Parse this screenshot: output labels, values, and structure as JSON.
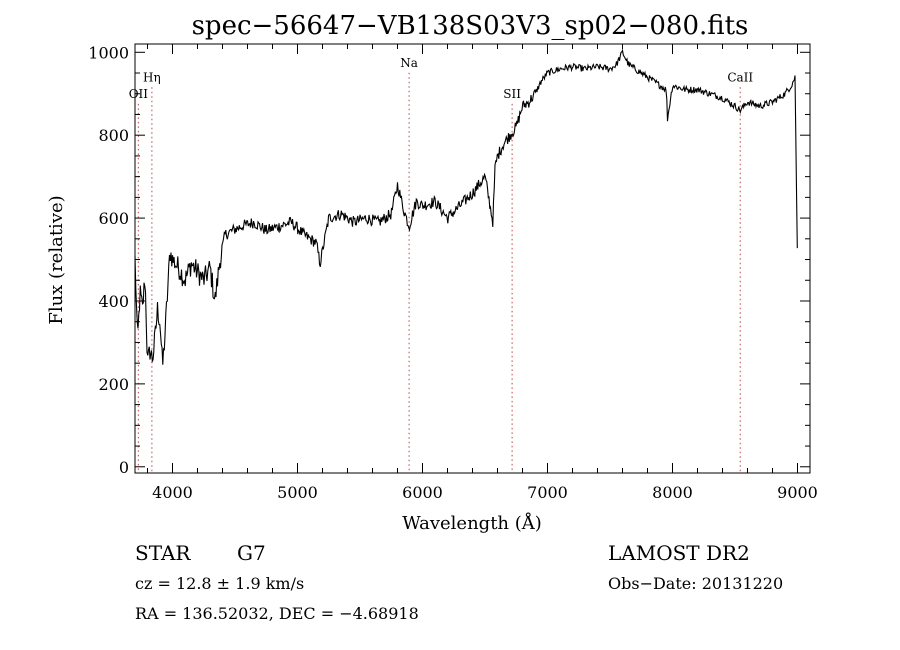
{
  "chart_data": {
    "type": "line",
    "title": "spec−56647−VB138S03V3_sp02−080.fits",
    "xlabel": "Wavelength (Å)",
    "ylabel": "Flux (relative)",
    "xlim": [
      3700,
      9100
    ],
    "ylim": [
      -15,
      1020
    ],
    "xticks": [
      4000,
      5000,
      6000,
      7000,
      8000,
      9000
    ],
    "xtick_labels": [
      "4000",
      "5000",
      "6000",
      "7000",
      "8000",
      "9000"
    ],
    "yticks": [
      0,
      200,
      400,
      600,
      800,
      1000
    ],
    "ytick_labels": [
      "0",
      "200",
      "400",
      "600",
      "800",
      "1000"
    ],
    "grid": false,
    "lines": [
      {
        "label": "OII",
        "wavelength": 3727,
        "label_flux": 890
      },
      {
        "label": "Hη",
        "wavelength": 3835,
        "label_flux": 930
      },
      {
        "label": "Na",
        "wavelength": 5893,
        "label_flux": 965
      },
      {
        "label": "SII",
        "wavelength": 6717,
        "label_flux": 890
      },
      {
        "label": "CaII",
        "wavelength": 8542,
        "label_flux": 930
      }
    ],
    "line_color": "#c86464",
    "series": [
      {
        "x": [
          3700,
          3720,
          3740,
          3760,
          3780,
          3800,
          3820,
          3840,
          3860,
          3880,
          3900,
          3920,
          3940,
          3960,
          3980,
          4000,
          4050,
          4100,
          4150,
          4200,
          4250,
          4300,
          4340,
          4380,
          4420,
          4480,
          4550,
          4650,
          4750,
          4850,
          4950,
          5050,
          5150,
          5180,
          5250,
          5350,
          5450,
          5550,
          5650,
          5750,
          5800,
          5850,
          5893,
          5950,
          6000,
          6100,
          6200,
          6300,
          6400,
          6500,
          6563,
          6580,
          6600,
          6650,
          6700,
          6750,
          6800,
          6850,
          6900,
          6950,
          7000,
          7100,
          7200,
          7300,
          7400,
          7500,
          7550,
          7600,
          7650,
          7700,
          7800,
          7900,
          7950,
          7960,
          8000,
          8100,
          8200,
          8300,
          8400,
          8500,
          8542,
          8600,
          8700,
          8800,
          8900,
          8950,
          8980,
          9000
        ],
        "y": [
          500,
          300,
          420,
          380,
          460,
          250,
          280,
          260,
          310,
          380,
          350,
          240,
          320,
          420,
          520,
          500,
          480,
          450,
          490,
          470,
          450,
          480,
          400,
          500,
          560,
          570,
          580,
          590,
          570,
          580,
          590,
          560,
          540,
          490,
          600,
          610,
          590,
          600,
          590,
          610,
          680,
          620,
          580,
          640,
          630,
          640,
          600,
          630,
          660,
          700,
          590,
          720,
          750,
          780,
          800,
          820,
          870,
          880,
          900,
          930,
          950,
          960,
          965,
          960,
          965,
          960,
          970,
          1000,
          970,
          960,
          940,
          920,
          910,
          840,
          920,
          910,
          910,
          900,
          890,
          870,
          860,
          880,
          870,
          880,
          900,
          920,
          940,
          480
        ]
      }
    ]
  },
  "info": {
    "object_type": "STAR",
    "subclass": "G7",
    "cz": "cz = 12.8 ± 1.9 km/s",
    "radec": "RA = 136.52032, DEC =  −4.68918",
    "survey": "LAMOST DR2",
    "obs_date": "Obs−Date: 20131220"
  }
}
